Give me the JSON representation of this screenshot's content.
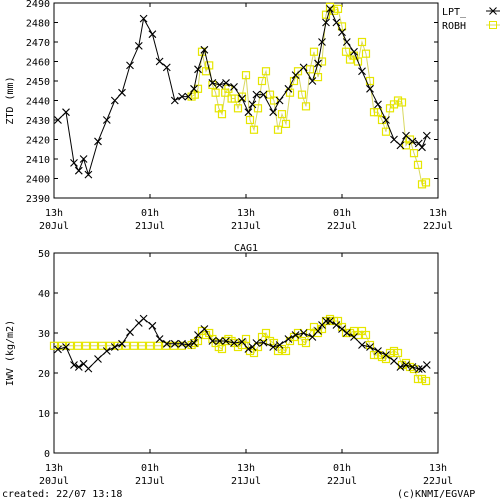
{
  "footer": {
    "created": "created: 22/07 13:18",
    "credit": "(c)KNMI/EGVAP"
  },
  "colors": {
    "lpt": "#000000",
    "robh": "#e6e600",
    "robh_line": "#d8d860"
  },
  "chart_data": [
    {
      "type": "line",
      "title": "",
      "xlabel": "",
      "ylabel": "ZTD (mm)",
      "xlim": [
        0,
        48
      ],
      "ylim": [
        2390,
        2490
      ],
      "yticks": [
        2390,
        2400,
        2410,
        2420,
        2430,
        2440,
        2450,
        2460,
        2470,
        2480,
        2490
      ],
      "x_ticks": [
        {
          "x": 0,
          "hour": "13h",
          "date": "20Jul"
        },
        {
          "x": 12,
          "hour": "01h",
          "date": "21Jul"
        },
        {
          "x": 24,
          "hour": "13h",
          "date": "21Jul"
        },
        {
          "x": 36,
          "hour": "01h",
          "date": "22Jul"
        },
        {
          "x": 48,
          "hour": "13h",
          "date": "22Jul"
        }
      ],
      "grid": false,
      "legend": "top-right",
      "legend_entries": [
        "LPT_",
        "ROBH"
      ],
      "series": [
        {
          "name": "LPT_",
          "marker": "x",
          "x": [
            0.5,
            1.5,
            2.5,
            3.1,
            3.7,
            4.3,
            5.5,
            6.6,
            7.6,
            8.5,
            9.5,
            10.6,
            11.2,
            12.3,
            13.2,
            14.1,
            15.1,
            16,
            16.8,
            17.5,
            18,
            18.8,
            19.8,
            20.7,
            21.5,
            22.5,
            23.5,
            24.3,
            24.8,
            25.3,
            26.2,
            27.4,
            28.2,
            29.3,
            30.2,
            31.2,
            32.3,
            33,
            33.5,
            34,
            34.5,
            35.3,
            36,
            36.6,
            37.5,
            38.5,
            39.5,
            40.5,
            41.5,
            42.5,
            43.3,
            44,
            44.8,
            45.6,
            46,
            46.6
          ],
          "y": [
            2430,
            2434,
            2408,
            2404,
            2410,
            2402,
            2419,
            2430,
            2440,
            2444,
            2458,
            2468,
            2482,
            2474,
            2460,
            2457,
            2440,
            2442,
            2442,
            2446,
            2456,
            2466,
            2449,
            2448,
            2449,
            2447,
            2441,
            2434,
            2438,
            2443,
            2443,
            2434,
            2440,
            2446,
            2453,
            2457,
            2450,
            2459,
            2470,
            2480,
            2487,
            2480,
            2475,
            2470,
            2465,
            2455,
            2446,
            2438,
            2430,
            2420,
            2417,
            2422,
            2419,
            2418,
            2416,
            2422
          ]
        },
        {
          "name": "ROBH",
          "marker": "square",
          "x": [
            17.2,
            17.6,
            18,
            18.5,
            19,
            19.4,
            19.8,
            20.2,
            20.6,
            21,
            21.4,
            21.8,
            22.2,
            22.6,
            23,
            23.5,
            24,
            24.5,
            25,
            25.5,
            26,
            26.5,
            27,
            27.5,
            28,
            28.5,
            29,
            29.5,
            30,
            30.5,
            31,
            31.5,
            32,
            32.5,
            33,
            33.5,
            34,
            34.5,
            35,
            35.5,
            36,
            36.5,
            37,
            37.5,
            38,
            38.5,
            39,
            39.5,
            40,
            40.5,
            41,
            41.5,
            42,
            42.5,
            43,
            43.5,
            44,
            44.5,
            45,
            45.5,
            46,
            46.5
          ],
          "y": [
            2442,
            2443,
            2446,
            2465,
            2455,
            2458,
            2448,
            2444,
            2436,
            2433,
            2444,
            2446,
            2441,
            2441,
            2436,
            2442,
            2453,
            2430,
            2425,
            2436,
            2450,
            2455,
            2443,
            2440,
            2425,
            2433,
            2428,
            2444,
            2450,
            2455,
            2443,
            2437,
            2456,
            2465,
            2452,
            2460,
            2484,
            2488,
            2486,
            2487,
            2478,
            2465,
            2461,
            2463,
            2460,
            2470,
            2464,
            2450,
            2434,
            2434,
            2430,
            2424,
            2436,
            2438,
            2440,
            2439,
            2417,
            2420,
            2413,
            2407,
            2397,
            2398
          ]
        }
      ]
    },
    {
      "type": "line",
      "title": "CAG1",
      "xlabel": "",
      "ylabel": "IWV (kg/m2)",
      "xlim": [
        0,
        48
      ],
      "ylim": [
        0,
        50
      ],
      "yticks": [
        0,
        10,
        20,
        30,
        40,
        50
      ],
      "x_ticks": [
        {
          "x": 0,
          "hour": "13h",
          "date": "20Jul"
        },
        {
          "x": 12,
          "hour": "01h",
          "date": "21Jul"
        },
        {
          "x": 24,
          "hour": "13h",
          "date": "21Jul"
        },
        {
          "x": 36,
          "hour": "01h",
          "date": "22Jul"
        },
        {
          "x": 48,
          "hour": "13h",
          "date": "22Jul"
        }
      ],
      "grid": false,
      "legend": "none",
      "series": [
        {
          "name": "LPT_",
          "marker": "x",
          "x": [
            0.5,
            1.5,
            2.5,
            3.1,
            3.7,
            4.3,
            5.5,
            6.6,
            7.6,
            8.5,
            9.5,
            10.6,
            11.2,
            12.3,
            13.2,
            14.1,
            15.1,
            16,
            16.8,
            17.5,
            18,
            18.8,
            19.8,
            20.7,
            21.5,
            22.5,
            23.5,
            24.3,
            24.8,
            25.3,
            26.2,
            27.4,
            28.2,
            29.3,
            30.2,
            31.2,
            32.3,
            33,
            33.5,
            34,
            34.5,
            35.3,
            36,
            36.6,
            37.5,
            38.5,
            39.5,
            40.5,
            41.5,
            42.5,
            43.3,
            44,
            44.8,
            45.6,
            46,
            46.6
          ],
          "y": [
            25.9,
            26.5,
            22,
            21.5,
            22.3,
            21.1,
            23.5,
            25.5,
            26.5,
            27.3,
            30.2,
            32.5,
            33.6,
            31.8,
            28.5,
            27.3,
            27.3,
            27.3,
            27,
            27.5,
            29.5,
            31,
            28,
            28,
            28,
            27.5,
            27.8,
            26,
            26.5,
            27.5,
            27.6,
            26.5,
            27,
            28.5,
            29.5,
            30,
            29,
            30.5,
            32,
            33,
            33,
            32,
            31,
            30,
            29,
            27,
            26.5,
            25.5,
            24.5,
            23,
            21.5,
            22,
            21.5,
            21,
            21,
            22
          ]
        },
        {
          "name": "ROBH",
          "marker": "square",
          "x": [
            0,
            1,
            2,
            3,
            4,
            5,
            6,
            7,
            8,
            9,
            10,
            11,
            12,
            13,
            14,
            15,
            16,
            17.2,
            17.6,
            18,
            18.5,
            19,
            19.4,
            19.8,
            20.2,
            20.6,
            21,
            21.4,
            21.8,
            22.2,
            22.6,
            23,
            23.5,
            24,
            24.5,
            25,
            25.5,
            26,
            26.5,
            27,
            27.5,
            28,
            28.5,
            29,
            29.5,
            30,
            30.5,
            31,
            31.5,
            32,
            32.5,
            33,
            33.5,
            34,
            34.5,
            35,
            35.5,
            36,
            36.5,
            37,
            37.5,
            38,
            38.5,
            39,
            39.5,
            40,
            40.5,
            41,
            41.5,
            42,
            42.5,
            43,
            43.5,
            44,
            44.5,
            45,
            45.5,
            46,
            46.5
          ],
          "y": [
            26.8,
            26.8,
            26.8,
            26.8,
            26.8,
            26.8,
            26.8,
            26.8,
            26.8,
            26.8,
            26.8,
            26.8,
            26.8,
            26.8,
            26.8,
            26.8,
            26.8,
            27,
            27.5,
            28,
            30.5,
            29.5,
            30,
            28.5,
            27.5,
            26.5,
            26,
            28,
            28.5,
            28,
            27.5,
            26.5,
            27,
            28.5,
            25.5,
            25,
            26.5,
            29,
            30,
            28,
            27.5,
            25.5,
            26,
            25.5,
            28,
            29,
            30,
            28,
            27.5,
            30,
            31.5,
            30,
            31,
            33,
            33.5,
            33,
            33,
            31.5,
            30,
            30,
            30.5,
            29.5,
            30.5,
            29.5,
            27,
            24.5,
            24.5,
            24,
            23.5,
            25,
            25.5,
            25,
            22,
            22.5,
            21.5,
            21,
            18.5,
            18.5,
            18
          ]
        }
      ]
    }
  ]
}
